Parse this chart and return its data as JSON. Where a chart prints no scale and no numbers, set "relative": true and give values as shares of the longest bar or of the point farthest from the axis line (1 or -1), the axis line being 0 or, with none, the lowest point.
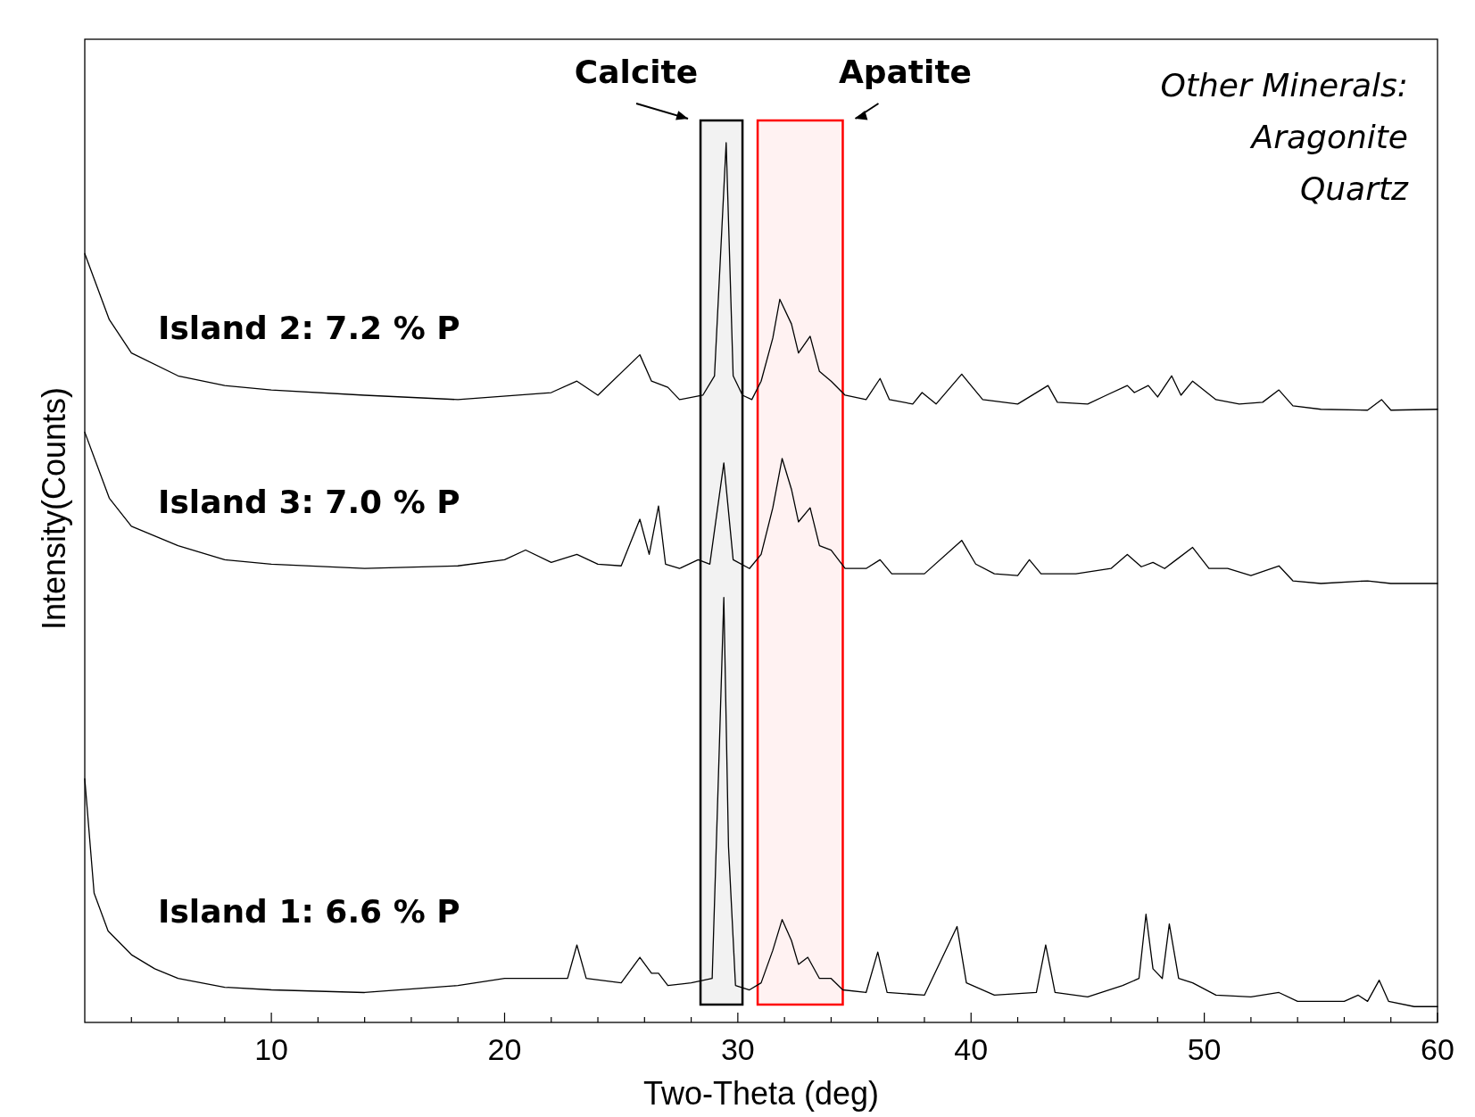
{
  "chart_data": {
    "type": "line",
    "relative": true,
    "xlabel": "Two-Theta (deg)",
    "ylabel": "Intensity(Counts)",
    "xlim": [
      2,
      60
    ],
    "xticks": [
      {
        "value": 4,
        "label": null
      },
      {
        "value": 6,
        "label": null
      },
      {
        "value": 8,
        "label": null
      },
      10,
      {
        "value": 12,
        "label": null
      },
      {
        "value": 14,
        "label": null
      },
      {
        "value": 16,
        "label": null
      },
      {
        "value": 18,
        "label": null
      },
      20,
      {
        "value": 22,
        "label": null
      },
      {
        "value": 24,
        "label": null
      },
      {
        "value": 26,
        "label": null
      },
      {
        "value": 28,
        "label": null
      },
      30,
      {
        "value": 32,
        "label": null
      },
      {
        "value": 34,
        "label": null
      },
      {
        "value": 36,
        "label": null
      },
      {
        "value": 38,
        "label": null
      },
      40,
      {
        "value": 42,
        "label": null
      },
      {
        "value": 44,
        "label": null
      },
      {
        "value": 46,
        "label": null
      },
      {
        "value": 48,
        "label": null
      },
      50,
      {
        "value": 52,
        "label": null
      },
      {
        "value": 54,
        "label": null
      },
      {
        "value": 56,
        "label": null
      },
      {
        "value": 58,
        "label": null
      },
      60
    ],
    "bands": [
      {
        "axis": "x",
        "from": 28.4,
        "to": 30.2,
        "label": "Calcite",
        "color": "#000000"
      },
      {
        "axis": "x",
        "from": 30.85,
        "to": 34.5,
        "label": "Apatite",
        "color": "#ff0000"
      }
    ],
    "annotations": [
      "Other Minerals:",
      "Aragonite",
      "Quartz"
    ],
    "series": [
      {
        "name": "Island 2: 7.2 % P",
        "color": "#000000",
        "x": [
          2,
          3.05,
          4,
          6,
          8,
          10,
          14,
          18,
          22,
          23.1,
          24,
          25.8,
          26.3,
          27,
          27.5,
          28.5,
          29.0,
          29.5,
          29.8,
          30.2,
          30.6,
          31,
          31.5,
          31.8,
          32.3,
          32.6,
          33.1,
          33.5,
          34.0,
          34.6,
          35.5,
          36.1,
          36.5,
          37.5,
          37.9,
          38.5,
          39.6,
          40,
          40.5,
          42,
          43.3,
          43.7,
          45,
          45.8,
          46.7,
          47,
          47.6,
          48,
          48.6,
          49,
          49.5,
          50.5,
          51.5,
          52.5,
          53.2,
          53.8,
          55,
          57,
          57.6,
          58,
          60
        ],
        "values": [
          0.874,
          0.799,
          0.761,
          0.735,
          0.724,
          0.719,
          0.713,
          0.708,
          0.716,
          0.729,
          0.713,
          0.759,
          0.729,
          0.722,
          0.708,
          0.713,
          0.735,
          1.0,
          0.735,
          0.713,
          0.708,
          0.729,
          0.778,
          0.822,
          0.794,
          0.761,
          0.78,
          0.74,
          0.729,
          0.713,
          0.708,
          0.732,
          0.708,
          0.703,
          0.716,
          0.703,
          0.737,
          0.724,
          0.708,
          0.703,
          0.724,
          0.705,
          0.703,
          0.713,
          0.724,
          0.716,
          0.724,
          0.711,
          0.735,
          0.713,
          0.729,
          0.708,
          0.703,
          0.705,
          0.719,
          0.701,
          0.697,
          0.696,
          0.708,
          0.696,
          0.697
        ]
      },
      {
        "name": "Island 3: 7.0 % P",
        "color": "#000000",
        "x": [
          2,
          3.05,
          4,
          6,
          8,
          10,
          14,
          18,
          20,
          20.9,
          22,
          23.1,
          24,
          25,
          25.8,
          26.2,
          26.6,
          26.9,
          27.5,
          28.3,
          28.8,
          29.4,
          29.8,
          30.5,
          31,
          31.5,
          31.9,
          32.3,
          32.6,
          33.1,
          33.5,
          34.0,
          34.6,
          35.5,
          36.1,
          36.6,
          38,
          39.6,
          40.2,
          41,
          42,
          42.5,
          43,
          44.5,
          46,
          46.7,
          47.3,
          47.8,
          48.3,
          48.8,
          49.5,
          50.2,
          51,
          52,
          53.2,
          53.8,
          55,
          57,
          58,
          60
        ],
        "values": [
          0.671,
          0.596,
          0.564,
          0.542,
          0.526,
          0.521,
          0.516,
          0.519,
          0.526,
          0.537,
          0.523,
          0.532,
          0.521,
          0.519,
          0.572,
          0.532,
          0.587,
          0.521,
          0.516,
          0.526,
          0.521,
          0.636,
          0.526,
          0.516,
          0.532,
          0.585,
          0.641,
          0.606,
          0.569,
          0.585,
          0.542,
          0.537,
          0.516,
          0.516,
          0.526,
          0.51,
          0.51,
          0.548,
          0.521,
          0.51,
          0.508,
          0.526,
          0.51,
          0.51,
          0.516,
          0.532,
          0.518,
          0.523,
          0.516,
          0.526,
          0.54,
          0.516,
          0.516,
          0.508,
          0.519,
          0.502,
          0.499,
          0.502,
          0.499,
          0.499
        ]
      },
      {
        "name": "Island 1: 6.6 % P",
        "color": "#000000",
        "x": [
          2,
          2.4,
          3,
          4,
          5,
          6,
          8,
          10,
          14,
          18,
          20,
          22,
          22.7,
          23.1,
          23.5,
          25,
          25.8,
          26.3,
          26.6,
          27,
          28,
          28.9,
          29.2,
          29.4,
          29.6,
          29.9,
          30.5,
          31,
          31.5,
          31.9,
          32.3,
          32.6,
          33.0,
          33.5,
          34.0,
          34.5,
          35.5,
          36.0,
          36.4,
          38,
          39.4,
          39.8,
          41,
          42.8,
          43.2,
          43.6,
          45,
          46.5,
          47.2,
          47.5,
          47.8,
          48.2,
          48.5,
          48.9,
          49.5,
          50.5,
          52,
          53.2,
          54,
          56,
          56.6,
          57,
          57.5,
          57.9,
          59,
          60
        ],
        "values": [
          0.277,
          0.147,
          0.104,
          0.077,
          0.061,
          0.05,
          0.04,
          0.037,
          0.034,
          0.042,
          0.05,
          0.05,
          0.05,
          0.088,
          0.05,
          0.045,
          0.074,
          0.056,
          0.056,
          0.042,
          0.045,
          0.05,
          0.307,
          0.483,
          0.2,
          0.042,
          0.037,
          0.045,
          0.082,
          0.117,
          0.093,
          0.066,
          0.074,
          0.05,
          0.05,
          0.037,
          0.034,
          0.08,
          0.034,
          0.031,
          0.109,
          0.045,
          0.031,
          0.034,
          0.088,
          0.034,
          0.029,
          0.042,
          0.05,
          0.123,
          0.061,
          0.05,
          0.112,
          0.05,
          0.045,
          0.031,
          0.029,
          0.034,
          0.024,
          0.024,
          0.031,
          0.024,
          0.048,
          0.024,
          0.018,
          0.018
        ]
      }
    ]
  }
}
